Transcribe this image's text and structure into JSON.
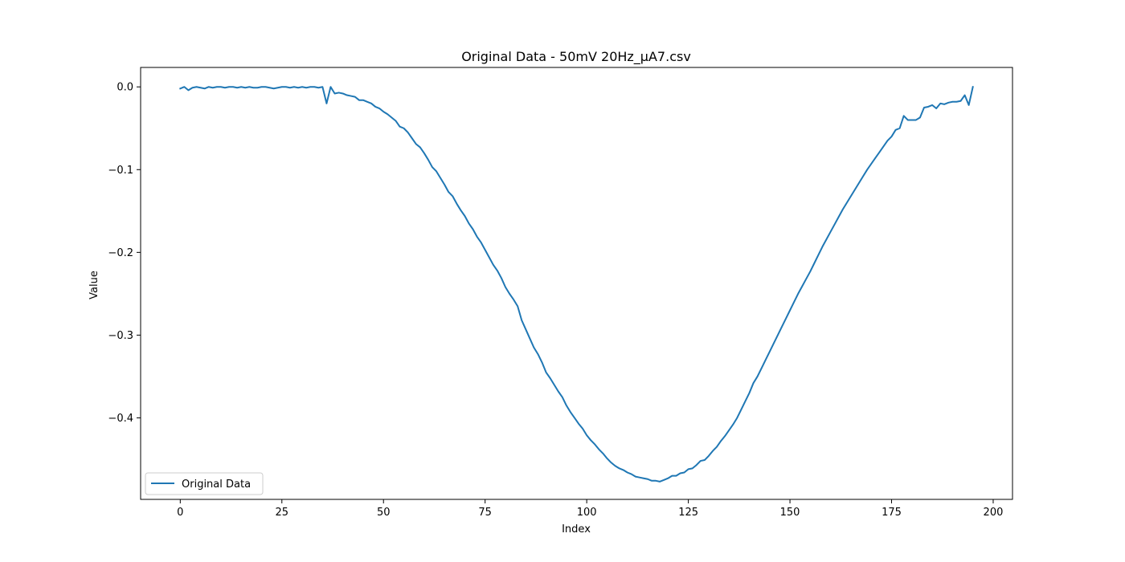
{
  "chart_data": {
    "type": "line",
    "title": "Original Data - 50mV 20Hz_µA7.csv",
    "xlabel": "Index",
    "ylabel": "Value",
    "xlim": [
      -9.75,
      204.75
    ],
    "ylim": [
      -0.4985,
      0.0235
    ],
    "x_ticks": [
      0,
      25,
      50,
      75,
      100,
      125,
      150,
      175,
      200
    ],
    "y_ticks": [
      0.0,
      -0.1,
      -0.2,
      -0.3,
      -0.4
    ],
    "x_tick_labels": [
      "0",
      "25",
      "50",
      "75",
      "100",
      "125",
      "150",
      "175",
      "200"
    ],
    "y_tick_labels": [
      "0.0",
      "−0.1",
      "−0.2",
      "−0.3",
      "−0.4"
    ],
    "grid": false,
    "legend": {
      "placement": "lower-left",
      "entries": [
        "Original Data"
      ]
    },
    "series": [
      {
        "name": "Original Data",
        "color": "#1f77b4",
        "x_start": 0,
        "x_step": 1,
        "values": [
          -0.002,
          0.0,
          -0.004,
          -0.001,
          0.0,
          -0.001,
          -0.002,
          0.0,
          -0.001,
          0.0,
          0.0,
          -0.001,
          0.0,
          0.0,
          -0.001,
          0.0,
          -0.001,
          0.0,
          -0.001,
          -0.001,
          0.0,
          0.0,
          -0.001,
          -0.002,
          -0.001,
          0.0,
          0.0,
          -0.001,
          0.0,
          -0.001,
          0.0,
          -0.001,
          0.0,
          0.0,
          -0.001,
          0.0,
          -0.02,
          0.0,
          -0.008,
          -0.007,
          -0.008,
          -0.01,
          -0.011,
          -0.012,
          -0.016,
          -0.016,
          -0.018,
          -0.02,
          -0.024,
          -0.026,
          -0.03,
          -0.033,
          -0.037,
          -0.041,
          -0.048,
          -0.05,
          -0.055,
          -0.062,
          -0.069,
          -0.073,
          -0.08,
          -0.088,
          -0.097,
          -0.102,
          -0.11,
          -0.118,
          -0.127,
          -0.132,
          -0.141,
          -0.149,
          -0.156,
          -0.165,
          -0.172,
          -0.181,
          -0.188,
          -0.197,
          -0.206,
          -0.215,
          -0.222,
          -0.231,
          -0.242,
          -0.25,
          -0.257,
          -0.265,
          -0.282,
          -0.293,
          -0.304,
          -0.315,
          -0.323,
          -0.333,
          -0.345,
          -0.352,
          -0.36,
          -0.368,
          -0.375,
          -0.385,
          -0.393,
          -0.4,
          -0.407,
          -0.413,
          -0.421,
          -0.427,
          -0.432,
          -0.438,
          -0.443,
          -0.449,
          -0.454,
          -0.458,
          -0.461,
          -0.463,
          -0.466,
          -0.468,
          -0.471,
          -0.472,
          -0.473,
          -0.474,
          -0.476,
          -0.476,
          -0.477,
          -0.475,
          -0.473,
          -0.47,
          -0.47,
          -0.467,
          -0.466,
          -0.462,
          -0.461,
          -0.457,
          -0.452,
          -0.451,
          -0.446,
          -0.44,
          -0.435,
          -0.428,
          -0.422,
          -0.415,
          -0.408,
          -0.4,
          -0.39,
          -0.38,
          -0.37,
          -0.358,
          -0.35,
          -0.34,
          -0.33,
          -0.32,
          -0.31,
          -0.3,
          -0.29,
          -0.28,
          -0.27,
          -0.26,
          -0.25,
          -0.241,
          -0.232,
          -0.223,
          -0.213,
          -0.203,
          -0.193,
          -0.184,
          -0.175,
          -0.166,
          -0.157,
          -0.148,
          -0.14,
          -0.132,
          -0.124,
          -0.116,
          -0.108,
          -0.1,
          -0.093,
          -0.086,
          -0.079,
          -0.072,
          -0.065,
          -0.06,
          -0.052,
          -0.05,
          -0.035,
          -0.04,
          -0.04,
          -0.04,
          -0.037,
          -0.025,
          -0.024,
          -0.022,
          -0.026,
          -0.02,
          -0.021,
          -0.019,
          -0.018,
          -0.018,
          -0.017,
          -0.01,
          -0.022,
          0.0
        ]
      }
    ]
  }
}
